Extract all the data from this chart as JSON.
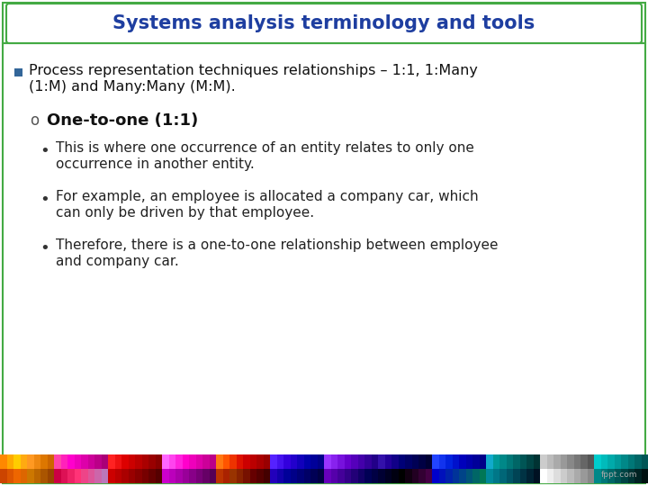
{
  "title": "Systems analysis terminology and tools",
  "title_color": "#1E3EA0",
  "title_border_color": "#44AA44",
  "title_bg_color": "#FFFFFF",
  "bullet_square_color": "#336699",
  "bullet_text_line1": "Process representation techniques relationships – 1:1, 1:Many",
  "bullet_text_line2": "(1:M) and Many:Many (M:M).",
  "sub_heading": "One-to-one (1:1)",
  "sub_heading_color": "#111111",
  "body_bullets": [
    [
      "This is where one occurrence of an entity relates to only one",
      "occurrence in another entity."
    ],
    [
      "For example, an employee is allocated a company car, which",
      "can only be driven by that employee."
    ],
    [
      "Therefore, there is a one-to-one relationship between employee",
      "and company car."
    ]
  ],
  "bg_color": "#FFFFFF",
  "body_text_color": "#222222",
  "footer_row1": [
    "#CC4400",
    "#DD5500",
    "#EE6600",
    "#DD6600",
    "#CC7700",
    "#BB6600",
    "#AA5500",
    "#994400",
    "#CC0044",
    "#DD1155",
    "#EE2266",
    "#FF3377",
    "#EE4488",
    "#DD5599",
    "#CC66AA",
    "#BB77BB",
    "#CC0000",
    "#BB0000",
    "#AA0000",
    "#990000",
    "#880000",
    "#770000",
    "#660000",
    "#550000",
    "#CC00CC",
    "#BB00BB",
    "#AA00AA",
    "#990099",
    "#880088",
    "#770077",
    "#660066",
    "#550055",
    "#BB3300",
    "#AA2200",
    "#993300",
    "#882200",
    "#771100",
    "#660000",
    "#550000",
    "#440000",
    "#2200BB",
    "#1100AA",
    "#000099",
    "#000088",
    "#000077",
    "#000066",
    "#000055",
    "#000044",
    "#6600BB",
    "#5500AA",
    "#440099",
    "#330088",
    "#220077",
    "#110066",
    "#000055",
    "#000044",
    "#000033",
    "#000022",
    "#000011",
    "#000000",
    "#110011",
    "#220022",
    "#330033",
    "#440044",
    "#0000CC",
    "#0011BB",
    "#0022AA",
    "#003399",
    "#004488",
    "#005577",
    "#006666",
    "#007755",
    "#008899",
    "#007788",
    "#006677",
    "#005566",
    "#004455",
    "#003344",
    "#002233",
    "#001122",
    "#FFFFFF",
    "#EEEEEE",
    "#DDDDDD",
    "#CCCCCC",
    "#BBBBBB",
    "#AAAAAA",
    "#999999",
    "#888888",
    "#008888",
    "#007777",
    "#006666",
    "#005555",
    "#004444",
    "#003333",
    "#002222",
    "#001111"
  ],
  "footer_row2": [
    "#FF8800",
    "#FFAA00",
    "#FFCC00",
    "#FFAA11",
    "#FF9922",
    "#EE8811",
    "#DD7700",
    "#CC6600",
    "#FF44AA",
    "#FF22BB",
    "#FF00CC",
    "#EE00BB",
    "#DD00AA",
    "#CC0099",
    "#BB0088",
    "#AA0077",
    "#FF2222",
    "#EE1111",
    "#DD0000",
    "#CC0000",
    "#BB0000",
    "#AA0000",
    "#990000",
    "#880000",
    "#FF66FF",
    "#FF44EE",
    "#FF22DD",
    "#FF00CC",
    "#EE00BB",
    "#DD00AA",
    "#CC0099",
    "#BB0088",
    "#FF7711",
    "#FF5500",
    "#EE3300",
    "#DD1100",
    "#CC0000",
    "#BB0000",
    "#AA0000",
    "#990000",
    "#5522FF",
    "#4411EE",
    "#3300DD",
    "#2200CC",
    "#1100BB",
    "#0000AA",
    "#000099",
    "#000088",
    "#9933FF",
    "#8822EE",
    "#7711DD",
    "#6600CC",
    "#5500BB",
    "#4400AA",
    "#330099",
    "#220088",
    "#3311AA",
    "#220099",
    "#110088",
    "#000077",
    "#000066",
    "#000055",
    "#000044",
    "#000033",
    "#2244FF",
    "#1133EE",
    "#0022DD",
    "#0011CC",
    "#0000BB",
    "#0000AA",
    "#000099",
    "#000088",
    "#11AACC",
    "#009999",
    "#008888",
    "#007777",
    "#006666",
    "#005555",
    "#004444",
    "#003333",
    "#CCCCCC",
    "#BBBBBB",
    "#AAAAAA",
    "#999999",
    "#888888",
    "#777777",
    "#666666",
    "#555555",
    "#00CCCC",
    "#00BBBB",
    "#00AAAA",
    "#009999",
    "#008888",
    "#007777",
    "#006666",
    "#005555"
  ]
}
